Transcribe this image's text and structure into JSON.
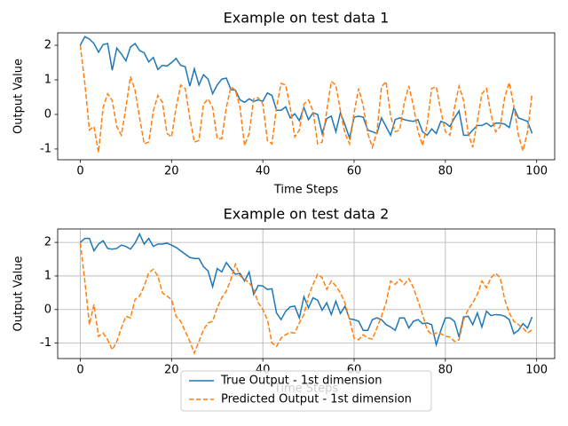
{
  "chart_data": [
    {
      "type": "line",
      "title": "Example on test data 1",
      "xlabel": "Time Steps",
      "ylabel": "Output Value",
      "grid": false,
      "xlim": [
        -4.95,
        103.95
      ],
      "ylim": [
        -1.31,
        2.36
      ],
      "xticks": [
        0,
        20,
        40,
        60,
        80,
        100
      ],
      "yticks": [
        -1,
        0,
        1,
        2
      ],
      "x": [
        0,
        1,
        2,
        3,
        4,
        5,
        6,
        7,
        8,
        9,
        10,
        11,
        12,
        13,
        14,
        15,
        16,
        17,
        18,
        19,
        20,
        21,
        22,
        23,
        24,
        25,
        26,
        27,
        28,
        29,
        30,
        31,
        32,
        33,
        34,
        35,
        36,
        37,
        38,
        39,
        40,
        41,
        42,
        43,
        44,
        45,
        46,
        47,
        48,
        49,
        50,
        51,
        52,
        53,
        54,
        55,
        56,
        57,
        58,
        59,
        60,
        61,
        62,
        63,
        64,
        65,
        66,
        67,
        68,
        69,
        70,
        71,
        72,
        73,
        74,
        75,
        76,
        77,
        78,
        79,
        80,
        81,
        82,
        83,
        84,
        85,
        86,
        87,
        88,
        89,
        90,
        91,
        92,
        93,
        94,
        95,
        96,
        97,
        98,
        99
      ],
      "series": [
        {
          "color": "#1f77b4",
          "linestyle": "solid",
          "values": [
            2.0,
            2.25,
            2.18,
            2.05,
            1.8,
            2.02,
            2.05,
            1.28,
            1.92,
            1.75,
            1.55,
            1.95,
            2.05,
            1.85,
            1.78,
            1.52,
            1.65,
            1.3,
            1.42,
            1.4,
            1.5,
            1.62,
            1.42,
            1.38,
            0.82,
            1.32,
            0.85,
            1.15,
            1.02,
            0.6,
            0.85,
            1.02,
            1.05,
            0.72,
            0.7,
            0.42,
            0.35,
            0.45,
            0.38,
            0.42,
            0.38,
            0.62,
            0.55,
            0.12,
            0.12,
            0.22,
            -0.1,
            0.02,
            -0.18,
            0.2,
            -0.15,
            0.05,
            0.0,
            -0.55,
            -0.12,
            -0.05,
            -0.5,
            0.05,
            -0.3,
            -0.68,
            -0.08,
            -0.05,
            -0.08,
            -0.45,
            -0.5,
            -0.55,
            -0.1,
            -0.35,
            -0.6,
            -0.15,
            -0.1,
            -0.15,
            -0.18,
            -0.2,
            -0.15,
            -0.5,
            -0.6,
            -0.42,
            -0.55,
            -0.2,
            -0.25,
            -0.35,
            -0.1,
            0.1,
            -0.6,
            -0.6,
            -0.45,
            -0.32,
            -0.32,
            -0.25,
            -0.35,
            -0.25,
            -0.25,
            -0.28,
            -0.38,
            0.2,
            -0.1,
            -0.15,
            -0.2,
            -0.55
          ]
        },
        {
          "color": "#ff7f0e",
          "linestyle": "dashed",
          "values": [
            2.0,
            0.9,
            -0.45,
            -0.35,
            -1.1,
            0.2,
            0.6,
            0.4,
            -0.35,
            -0.6,
            0.2,
            1.1,
            0.7,
            -0.1,
            -0.85,
            -0.8,
            0.1,
            0.55,
            0.35,
            -0.55,
            -0.65,
            0.2,
            0.85,
            0.75,
            -0.1,
            -0.8,
            -0.75,
            0.3,
            0.45,
            0.2,
            -0.7,
            -0.7,
            0.2,
            0.8,
            0.7,
            0.2,
            -0.9,
            -0.55,
            0.45,
            0.48,
            0.3,
            -0.75,
            -0.85,
            0.2,
            0.9,
            0.85,
            0.2,
            -0.65,
            -0.45,
            0.3,
            0.42,
            0.1,
            -0.85,
            -0.8,
            0.1,
            0.95,
            0.85,
            0.1,
            -0.55,
            -0.85,
            0.05,
            0.75,
            0.25,
            -0.55,
            -0.95,
            -0.5,
            0.8,
            0.95,
            -0.05,
            -0.5,
            -0.45,
            0.35,
            0.82,
            0.25,
            -0.5,
            -0.9,
            -0.3,
            0.75,
            0.8,
            0.1,
            -0.5,
            -0.6,
            0.2,
            0.82,
            0.4,
            -0.55,
            -0.95,
            -0.2,
            0.6,
            0.75,
            0.0,
            -0.5,
            -0.35,
            0.5,
            0.92,
            0.25,
            -0.6,
            -1.05,
            -0.5,
            0.6
          ]
        }
      ]
    },
    {
      "type": "line",
      "title": "Example on test data 2",
      "xlabel": "Time Steps",
      "ylabel": "Output Value",
      "grid": true,
      "legend": "lower center",
      "xlim": [
        -4.95,
        103.95
      ],
      "ylim": [
        -1.46,
        2.4
      ],
      "xticks": [
        0,
        20,
        40,
        60,
        80,
        100
      ],
      "yticks": [
        -1,
        0,
        1,
        2
      ],
      "x": [
        0,
        1,
        2,
        3,
        4,
        5,
        6,
        7,
        8,
        9,
        10,
        11,
        12,
        13,
        14,
        15,
        16,
        17,
        18,
        19,
        20,
        21,
        22,
        23,
        24,
        25,
        26,
        27,
        28,
        29,
        30,
        31,
        32,
        33,
        34,
        35,
        36,
        37,
        38,
        39,
        40,
        41,
        42,
        43,
        44,
        45,
        46,
        47,
        48,
        49,
        50,
        51,
        52,
        53,
        54,
        55,
        56,
        57,
        58,
        59,
        60,
        61,
        62,
        63,
        64,
        65,
        66,
        67,
        68,
        69,
        70,
        71,
        72,
        73,
        74,
        75,
        76,
        77,
        78,
        79,
        80,
        81,
        82,
        83,
        84,
        85,
        86,
        87,
        88,
        89,
        90,
        91,
        92,
        93,
        94,
        95,
        96,
        97,
        98,
        99
      ],
      "series": [
        {
          "name": "True Output - 1st dimension",
          "color": "#1f77b4",
          "linestyle": "solid",
          "values": [
            2.0,
            2.12,
            2.12,
            1.75,
            1.95,
            2.05,
            1.82,
            1.8,
            1.82,
            1.92,
            1.88,
            1.8,
            1.98,
            2.25,
            1.95,
            2.12,
            1.88,
            1.95,
            1.95,
            1.98,
            1.92,
            1.85,
            1.75,
            1.65,
            1.55,
            1.52,
            1.52,
            1.28,
            1.15,
            0.68,
            1.22,
            1.12,
            1.4,
            1.22,
            1.05,
            1.08,
            0.85,
            1.12,
            0.45,
            0.72,
            0.7,
            0.6,
            0.62,
            -0.1,
            -0.3,
            -0.05,
            0.08,
            0.1,
            -0.25,
            0.38,
            0.05,
            0.35,
            0.28,
            -0.02,
            0.2,
            -0.15,
            0.25,
            -0.12,
            0.1,
            -0.28,
            -0.3,
            -0.35,
            -0.62,
            -0.62,
            -0.3,
            -0.25,
            -0.3,
            -0.45,
            -0.52,
            -0.62,
            -0.25,
            -0.25,
            -0.55,
            -0.35,
            -0.3,
            -0.42,
            -0.4,
            -0.45,
            -1.05,
            -0.62,
            -0.25,
            -0.25,
            -0.35,
            -0.82,
            -0.22,
            -0.2,
            -0.45,
            -0.1,
            -0.52,
            -0.05,
            -0.18,
            -0.15,
            -0.16,
            -0.2,
            -0.3,
            -0.72,
            -0.62,
            -0.42,
            -0.55,
            -0.22
          ]
        },
        {
          "name": "Predicted Output - 1st dimension",
          "color": "#ff7f0e",
          "linestyle": "dashed",
          "values": [
            1.98,
            0.85,
            -0.45,
            0.15,
            -0.8,
            -0.7,
            -0.9,
            -1.2,
            -0.95,
            -0.55,
            -0.2,
            -0.25,
            0.3,
            0.4,
            0.7,
            1.1,
            1.2,
            1.0,
            0.5,
            0.4,
            0.3,
            -0.2,
            -0.35,
            -0.65,
            -0.95,
            -1.3,
            -0.95,
            -0.6,
            -0.4,
            -0.35,
            0.05,
            0.35,
            0.55,
            0.9,
            1.35,
            1.0,
            0.9,
            0.8,
            0.6,
            0.2,
            0.0,
            -0.3,
            -1.0,
            -1.1,
            -0.85,
            -0.75,
            -0.68,
            -0.7,
            -0.4,
            -0.15,
            0.4,
            0.75,
            1.05,
            0.95,
            0.6,
            0.85,
            0.7,
            0.5,
            0.2,
            -0.3,
            -0.85,
            -0.9,
            -0.75,
            -0.85,
            -0.88,
            -0.55,
            -0.2,
            0.2,
            0.85,
            0.75,
            0.9,
            0.75,
            0.92,
            0.65,
            0.25,
            -0.15,
            -0.6,
            -0.75,
            -0.7,
            -0.72,
            -0.8,
            -0.82,
            -0.95,
            -0.9,
            -0.3,
            0.0,
            0.2,
            0.45,
            0.85,
            0.65,
            0.95,
            1.08,
            0.95,
            0.3,
            -0.1,
            -0.35,
            -0.45,
            -0.55,
            -0.7,
            -0.6
          ]
        }
      ]
    }
  ]
}
